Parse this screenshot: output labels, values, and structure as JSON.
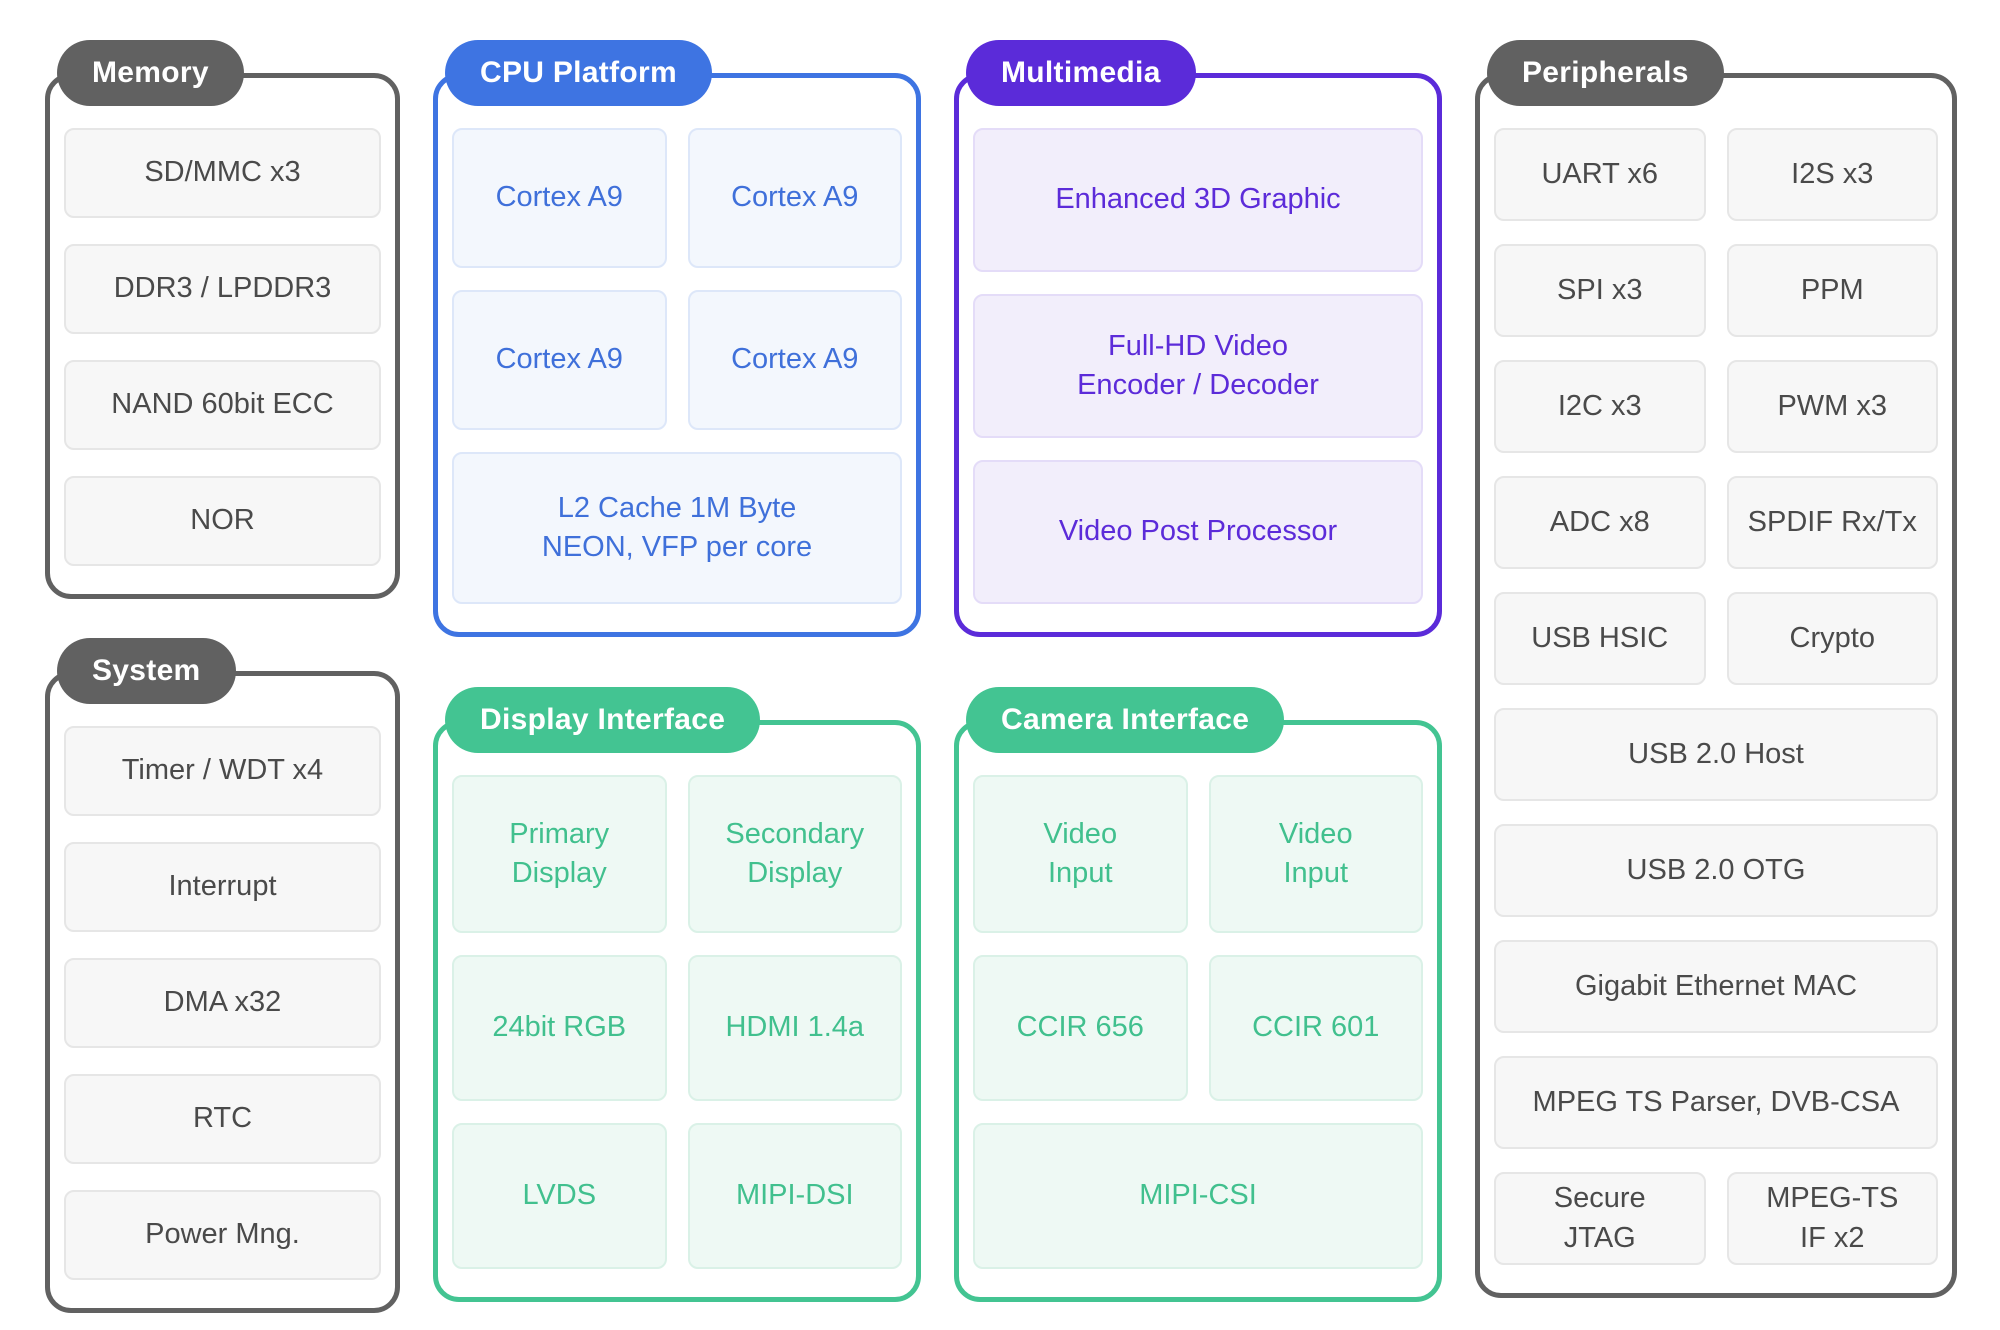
{
  "accent_colors": {
    "gray": "#616161",
    "blue": "#3e74e2",
    "purple": "#5b2bd9",
    "green": "#43c492"
  },
  "memory": {
    "title": "Memory",
    "items": [
      "SD/MMC x3",
      "DDR3 / LPDDR3",
      "NAND 60bit ECC",
      "NOR"
    ]
  },
  "system": {
    "title": "System",
    "items": [
      "Timer / WDT x4",
      "Interrupt",
      "DMA x32",
      "RTC",
      "Power Mng."
    ]
  },
  "cpu": {
    "title": "CPU Platform",
    "cores": [
      "Cortex A9",
      "Cortex A9",
      "Cortex A9",
      "Cortex A9"
    ],
    "cache": [
      "L2 Cache 1M Byte",
      "NEON, VFP per core"
    ]
  },
  "multimedia": {
    "title": "Multimedia",
    "blocks": [
      [
        "Enhanced 3D Graphic"
      ],
      [
        "Full-HD Video",
        "Encoder / Decoder"
      ],
      [
        "Video Post Processor"
      ]
    ]
  },
  "display": {
    "title": "Display Interface",
    "cells": [
      [
        "Primary",
        "Display"
      ],
      [
        "Secondary",
        "Display"
      ],
      [
        "24bit RGB"
      ],
      [
        "HDMI 1.4a"
      ],
      [
        "LVDS"
      ],
      [
        "MIPI-DSI"
      ]
    ]
  },
  "camera": {
    "title": "Camera Interface",
    "cells": [
      [
        "Video",
        "Input"
      ],
      [
        "Video",
        "Input"
      ],
      [
        "CCIR 656"
      ],
      [
        "CCIR 601"
      ],
      [
        "MIPI-CSI"
      ]
    ]
  },
  "peripherals": {
    "title": "Peripherals",
    "cells": [
      [
        "UART x6"
      ],
      [
        "I2S x3"
      ],
      [
        "SPI x3"
      ],
      [
        "PPM"
      ],
      [
        "I2C x3"
      ],
      [
        "PWM x3"
      ],
      [
        "ADC x8"
      ],
      [
        "SPDIF Rx/Tx"
      ],
      [
        "USB HSIC"
      ],
      [
        "Crypto"
      ],
      [
        "USB 2.0 Host"
      ],
      [
        "USB 2.0 OTG"
      ],
      [
        "Gigabit Ethernet MAC"
      ],
      [
        "MPEG TS Parser, DVB-CSA"
      ],
      [
        "Secure",
        "JTAG"
      ],
      [
        "MPEG-TS",
        "IF x2"
      ]
    ]
  }
}
